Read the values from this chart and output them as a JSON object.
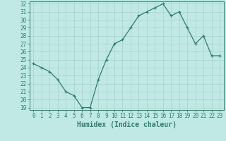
{
  "x": [
    0,
    1,
    2,
    3,
    4,
    5,
    6,
    7,
    8,
    9,
    10,
    11,
    12,
    13,
    14,
    15,
    16,
    17,
    18,
    19,
    20,
    21,
    22,
    23
  ],
  "y": [
    24.5,
    24.0,
    23.5,
    22.5,
    21.0,
    20.5,
    19.0,
    19.0,
    22.5,
    25.0,
    27.0,
    27.5,
    29.0,
    30.5,
    31.0,
    31.5,
    32.0,
    30.5,
    31.0,
    29.0,
    27.0,
    28.0,
    25.5,
    25.5
  ],
  "line_color": "#2e7d6e",
  "bg_color": "#c0e8e4",
  "grid_color": "#a8d0cc",
  "xlabel": "Humidex (Indice chaleur)",
  "ylim_min": 19,
  "ylim_max": 32,
  "xlim_min": 0,
  "xlim_max": 23,
  "yticks": [
    19,
    20,
    21,
    22,
    23,
    24,
    25,
    26,
    27,
    28,
    29,
    30,
    31,
    32
  ],
  "xticks": [
    0,
    1,
    2,
    3,
    4,
    5,
    6,
    7,
    8,
    9,
    10,
    11,
    12,
    13,
    14,
    15,
    16,
    17,
    18,
    19,
    20,
    21,
    22,
    23
  ],
  "tick_fontsize": 5.5,
  "label_fontsize": 7,
  "marker": "+"
}
